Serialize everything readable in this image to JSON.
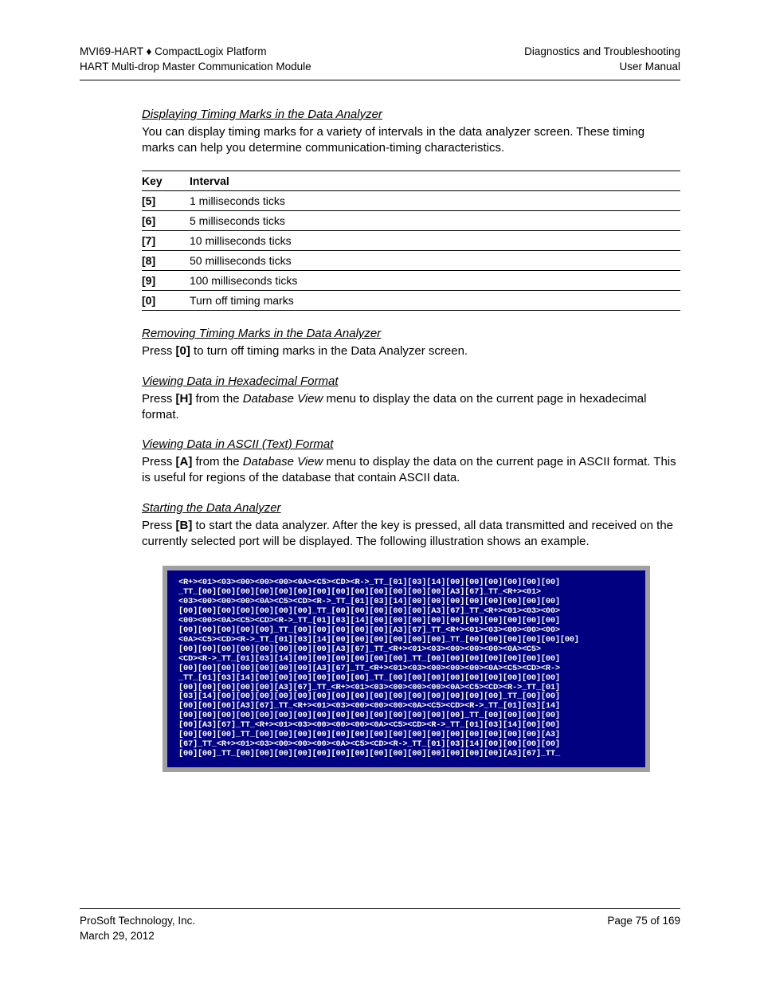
{
  "header": {
    "left_line1": "MVI69-HART ♦ CompactLogix Platform",
    "left_line2": "HART Multi-drop Master Communication Module",
    "right_line1": "Diagnostics and Troubleshooting",
    "right_line2": "User Manual"
  },
  "sections": {
    "displaying": {
      "heading": "Displaying Timing Marks in the Data Analyzer",
      "body": "You can display timing marks for a variety of intervals in the data analyzer screen. These timing marks can help you determine communication-timing characteristics."
    },
    "table": {
      "col1": "Key",
      "col2": "Interval",
      "rows": [
        {
          "key": "[5]",
          "interval": "1 milliseconds ticks"
        },
        {
          "key": "[6]",
          "interval": "5 milliseconds ticks"
        },
        {
          "key": "[7]",
          "interval": "10 milliseconds ticks"
        },
        {
          "key": "[8]",
          "interval": "50 milliseconds ticks"
        },
        {
          "key": "[9]",
          "interval": "100 milliseconds ticks"
        },
        {
          "key": "[0]",
          "interval": "Turn off timing marks"
        }
      ]
    },
    "removing": {
      "heading": "Removing Timing Marks in the Data Analyzer",
      "body_pre": "Press ",
      "body_key": "[0]",
      "body_post": " to turn off timing marks in the Data Analyzer screen."
    },
    "hex": {
      "heading": "Viewing Data in Hexadecimal Format",
      "body_pre": "Press ",
      "body_key": "[H]",
      "body_mid": " from the ",
      "body_menu": "Database View",
      "body_post": " menu to display the data on the current page in hexadecimal format."
    },
    "ascii": {
      "heading": "Viewing Data in ASCII (Text) Format",
      "body_pre": "Press ",
      "body_key": "[A]",
      "body_mid": " from the ",
      "body_menu": "Database View",
      "body_post": " menu to display the data on the current page in ASCII format. This is useful for regions of the database that contain ASCII data."
    },
    "starting": {
      "heading": "Starting the Data Analyzer",
      "body_pre": "Press ",
      "body_key": "[B]",
      "body_post": " to start the data analyzer. After the key is pressed, all data transmitted and received on the currently selected port will be displayed. The following illustration shows an example."
    }
  },
  "terminal": {
    "background_color": "#000080",
    "border_color": "#a0a0a0",
    "text_color": "#ffffff",
    "font_family": "Courier New",
    "font_size_pt": 8,
    "lines": [
      "<R+><01><03><00><00><00><0A><C5><CD><R->_TT_[01][03][14][00][00][00][00][00][00]",
      "_TT_[00][00][00][00][00][00][00][00][00][00][00][00][00][A3][67]_TT_<R+><01>",
      "<03><00><00><00><0A><C5><CD><R->_TT_[01][03][14][00][00][00][00][00][00][00][00]",
      "[00][00][00][00][00][00][00]_TT_[00][00][00][00][00][A3][67]_TT_<R+><01><03><00>",
      "<00><00><0A><C5><CD><R->_TT_[01][03][14][00][00][00][00][00][00][00][00][00][00]",
      "[00][00][00][00][00]_TT_[00][00][00][00][00][A3][67]_TT_<R+><01><03><00><00><00>",
      "<0A><C5><CD><R->_TT_[01][03][14][00][00][00][00][00][00]_TT_[00][00][00][00][00][00]",
      "[00][00][00][00][00][00][00][00][A3][67]_TT_<R+><01><03><00><00><00><0A><C5>",
      "<CD><R->_TT_[01][03][14][00][00][00][00][00][00]_TT_[00][00][00][00][00][00][00]",
      "[00][00][00][00][00][00][00][A3][67]_TT_<R+><01><03><00><00><00><0A><C5><CD><R->",
      "_TT_[01][03][14][00][00][00][00][00][00]_TT_[00][00][00][00][00][00][00][00][00]",
      "[00][00][00][00][00][A3][67]_TT_<R+><01><03><00><00><00><0A><C5><CD><R->_TT_[01]",
      "[03][14][00][00][00][00][00][00][00][00][00][00][00][00][00][00][00]_TT_[00][00]",
      "[00][00][00][A3][67]_TT_<R+><01><03><00><00><00><0A><C5><CD><R->_TT_[01][03][14]",
      "[00][00][00][00][00][00][00][00][00][00][00][00][00][00][00]_TT_[00][00][00][00]",
      "[00][A3][67]_TT_<R+><01><03><00><00><00><0A><C5><CD><R->_TT_[01][03][14][00][00]",
      "[00][00][00]_TT_[00][00][00][00][00][00][00][00][00][00][00][00][00][00][00][A3]",
      "[67]_TT_<R+><01><03><00><00><00><0A><C5><CD><R->_TT_[01][03][14][00][00][00][00]",
      "[00][00]_TT_[00][00][00][00][00][00][00][00][00][00][00][00][00][00][A3][67]_TT_"
    ]
  },
  "footer": {
    "left_line1": "ProSoft Technology, Inc.",
    "left_line2": "March 29, 2012",
    "right_line1": "Page 75 of 169"
  }
}
